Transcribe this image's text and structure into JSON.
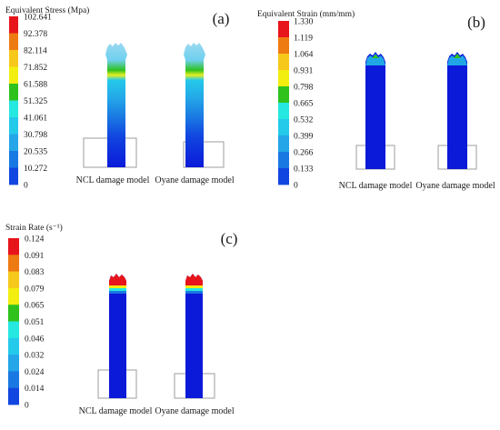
{
  "panels": [
    {
      "id": "a",
      "panel_label": "(a)",
      "colorbar_title": "Equivalent Stress (Mpa)",
      "ticks": [
        "102.641",
        "92.378",
        "82.114",
        "71.852",
        "61.588",
        "51.325",
        "41.061",
        "30.798",
        "20.535",
        "10.272",
        "0"
      ],
      "model_labels": [
        "NCL damage model",
        "Oyane damage model"
      ]
    },
    {
      "id": "b",
      "panel_label": "(b)",
      "colorbar_title": "Equivalent Strain (mm/mm)",
      "ticks": [
        "1.330",
        "1.119",
        "1.064",
        "0.931",
        "0.798",
        "0.665",
        "0.532",
        "0.399",
        "0.266",
        "0.133",
        "0"
      ],
      "model_labels": [
        "NCL damage model",
        "Oyane damage model"
      ]
    },
    {
      "id": "c",
      "panel_label": "(c)",
      "colorbar_title": "Strain Rate (s⁻¹)",
      "ticks": [
        "0.124",
        "0.091",
        "0.083",
        "0.079",
        "0.065",
        "0.051",
        "0.046",
        "0.032",
        "0.024",
        "0.014",
        "0"
      ],
      "model_labels": [
        "NCL damage model",
        "Oyane damage model"
      ]
    }
  ],
  "colors": {
    "scale": [
      "#e8141b",
      "#ee7a12",
      "#f6c81a",
      "#f2ee10",
      "#2fc21d",
      "#25e8e0",
      "#25c9ea",
      "#24a6e8",
      "#1a78e3",
      "#1146e0",
      "#0b1ad9"
    ],
    "outline": "#9c9c9c",
    "text": "#1a1a1a"
  }
}
